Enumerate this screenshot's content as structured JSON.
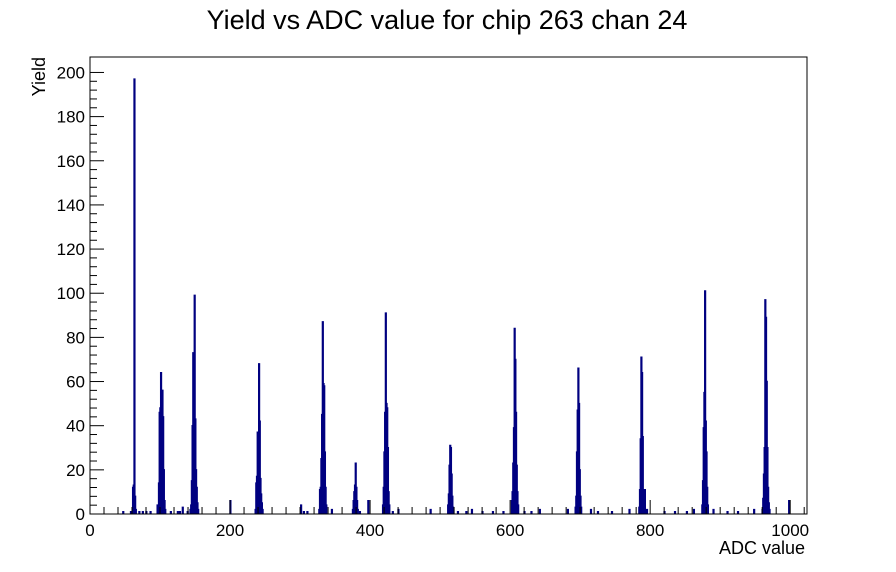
{
  "chart_data": {
    "type": "bar",
    "title": "Yield vs ADC value for chip 263 chan 24",
    "xlabel": "ADC value",
    "ylabel": "Yield",
    "xlim": [
      0,
      1024
    ],
    "ylim": [
      0,
      207
    ],
    "x_ticks": [
      0,
      200,
      400,
      600,
      800,
      1000
    ],
    "y_ticks": [
      0,
      20,
      40,
      60,
      80,
      100,
      120,
      140,
      160,
      180,
      200
    ],
    "color": "#000080",
    "grid": false,
    "legend": "none",
    "bins": [
      {
        "x": 47,
        "y": 1
      },
      {
        "x": 58,
        "y": 1
      },
      {
        "x": 61,
        "y": 12
      },
      {
        "x": 62,
        "y": 13
      },
      {
        "x": 63,
        "y": 197
      },
      {
        "x": 64,
        "y": 8
      },
      {
        "x": 65,
        "y": 2
      },
      {
        "x": 70,
        "y": 1
      },
      {
        "x": 75,
        "y": 1
      },
      {
        "x": 80,
        "y": 1
      },
      {
        "x": 86,
        "y": 1
      },
      {
        "x": 96,
        "y": 4
      },
      {
        "x": 98,
        "y": 14
      },
      {
        "x": 99,
        "y": 46
      },
      {
        "x": 100,
        "y": 48
      },
      {
        "x": 101,
        "y": 64
      },
      {
        "x": 102,
        "y": 38
      },
      {
        "x": 103,
        "y": 56
      },
      {
        "x": 104,
        "y": 44
      },
      {
        "x": 105,
        "y": 20
      },
      {
        "x": 106,
        "y": 6
      },
      {
        "x": 107,
        "y": 2
      },
      {
        "x": 115,
        "y": 1
      },
      {
        "x": 125,
        "y": 1
      },
      {
        "x": 128,
        "y": 1
      },
      {
        "x": 132,
        "y": 3
      },
      {
        "x": 139,
        "y": 1
      },
      {
        "x": 143,
        "y": 2
      },
      {
        "x": 144,
        "y": 4
      },
      {
        "x": 145,
        "y": 15
      },
      {
        "x": 146,
        "y": 40
      },
      {
        "x": 147,
        "y": 73
      },
      {
        "x": 148,
        "y": 38
      },
      {
        "x": 149,
        "y": 99
      },
      {
        "x": 150,
        "y": 43
      },
      {
        "x": 151,
        "y": 20
      },
      {
        "x": 152,
        "y": 12
      },
      {
        "x": 153,
        "y": 5
      },
      {
        "x": 154,
        "y": 2
      },
      {
        "x": 200,
        "y": 6
      },
      {
        "x": 236,
        "y": 2
      },
      {
        "x": 237,
        "y": 14
      },
      {
        "x": 238,
        "y": 17
      },
      {
        "x": 239,
        "y": 37
      },
      {
        "x": 240,
        "y": 19
      },
      {
        "x": 241,
        "y": 68
      },
      {
        "x": 242,
        "y": 42
      },
      {
        "x": 243,
        "y": 16
      },
      {
        "x": 244,
        "y": 9
      },
      {
        "x": 245,
        "y": 5
      },
      {
        "x": 246,
        "y": 2
      },
      {
        "x": 301,
        "y": 4
      },
      {
        "x": 305,
        "y": 1
      },
      {
        "x": 310,
        "y": 1
      },
      {
        "x": 327,
        "y": 2
      },
      {
        "x": 328,
        "y": 11
      },
      {
        "x": 329,
        "y": 12
      },
      {
        "x": 330,
        "y": 25
      },
      {
        "x": 331,
        "y": 45
      },
      {
        "x": 332,
        "y": 87
      },
      {
        "x": 333,
        "y": 59
      },
      {
        "x": 334,
        "y": 58
      },
      {
        "x": 335,
        "y": 28
      },
      {
        "x": 336,
        "y": 12
      },
      {
        "x": 337,
        "y": 4
      },
      {
        "x": 345,
        "y": 2
      },
      {
        "x": 375,
        "y": 2
      },
      {
        "x": 376,
        "y": 6
      },
      {
        "x": 377,
        "y": 10
      },
      {
        "x": 378,
        "y": 13
      },
      {
        "x": 379,
        "y": 23
      },
      {
        "x": 380,
        "y": 12
      },
      {
        "x": 381,
        "y": 6
      },
      {
        "x": 382,
        "y": 2
      },
      {
        "x": 385,
        "y": 1
      },
      {
        "x": 397,
        "y": 6
      },
      {
        "x": 418,
        "y": 4
      },
      {
        "x": 419,
        "y": 12
      },
      {
        "x": 420,
        "y": 28
      },
      {
        "x": 421,
        "y": 46
      },
      {
        "x": 422,
        "y": 91
      },
      {
        "x": 423,
        "y": 50
      },
      {
        "x": 424,
        "y": 48
      },
      {
        "x": 425,
        "y": 30
      },
      {
        "x": 426,
        "y": 10
      },
      {
        "x": 427,
        "y": 4
      },
      {
        "x": 432,
        "y": 1
      },
      {
        "x": 440,
        "y": 2
      },
      {
        "x": 486,
        "y": 2
      },
      {
        "x": 511,
        "y": 4
      },
      {
        "x": 512,
        "y": 9
      },
      {
        "x": 513,
        "y": 22
      },
      {
        "x": 514,
        "y": 31
      },
      {
        "x": 515,
        "y": 30
      },
      {
        "x": 516,
        "y": 18
      },
      {
        "x": 517,
        "y": 8
      },
      {
        "x": 518,
        "y": 3
      },
      {
        "x": 525,
        "y": 1
      },
      {
        "x": 537,
        "y": 1
      },
      {
        "x": 545,
        "y": 2
      },
      {
        "x": 560,
        "y": 1
      },
      {
        "x": 575,
        "y": 1
      },
      {
        "x": 590,
        "y": 1
      },
      {
        "x": 602,
        "y": 6
      },
      {
        "x": 603,
        "y": 10
      },
      {
        "x": 604,
        "y": 23
      },
      {
        "x": 605,
        "y": 39
      },
      {
        "x": 606,
        "y": 84
      },
      {
        "x": 607,
        "y": 70
      },
      {
        "x": 608,
        "y": 46
      },
      {
        "x": 609,
        "y": 22
      },
      {
        "x": 610,
        "y": 10
      },
      {
        "x": 611,
        "y": 4
      },
      {
        "x": 620,
        "y": 1
      },
      {
        "x": 630,
        "y": 1
      },
      {
        "x": 642,
        "y": 2
      },
      {
        "x": 682,
        "y": 2
      },
      {
        "x": 693,
        "y": 3
      },
      {
        "x": 694,
        "y": 8
      },
      {
        "x": 695,
        "y": 28
      },
      {
        "x": 696,
        "y": 47
      },
      {
        "x": 697,
        "y": 66
      },
      {
        "x": 698,
        "y": 50
      },
      {
        "x": 699,
        "y": 20
      },
      {
        "x": 700,
        "y": 8
      },
      {
        "x": 701,
        "y": 3
      },
      {
        "x": 715,
        "y": 2
      },
      {
        "x": 725,
        "y": 1
      },
      {
        "x": 745,
        "y": 1
      },
      {
        "x": 770,
        "y": 2
      },
      {
        "x": 784,
        "y": 3
      },
      {
        "x": 785,
        "y": 11
      },
      {
        "x": 786,
        "y": 34
      },
      {
        "x": 787,
        "y": 71
      },
      {
        "x": 788,
        "y": 64
      },
      {
        "x": 789,
        "y": 35
      },
      {
        "x": 790,
        "y": 11
      },
      {
        "x": 791,
        "y": 3
      },
      {
        "x": 792,
        "y": 11
      },
      {
        "x": 795,
        "y": 2
      },
      {
        "x": 820,
        "y": 1
      },
      {
        "x": 835,
        "y": 1
      },
      {
        "x": 852,
        "y": 1
      },
      {
        "x": 862,
        "y": 2
      },
      {
        "x": 874,
        "y": 4
      },
      {
        "x": 875,
        "y": 15
      },
      {
        "x": 876,
        "y": 39
      },
      {
        "x": 877,
        "y": 55
      },
      {
        "x": 878,
        "y": 101
      },
      {
        "x": 879,
        "y": 42
      },
      {
        "x": 880,
        "y": 28
      },
      {
        "x": 881,
        "y": 12
      },
      {
        "x": 882,
        "y": 4
      },
      {
        "x": 890,
        "y": 2
      },
      {
        "x": 910,
        "y": 1
      },
      {
        "x": 925,
        "y": 1
      },
      {
        "x": 948,
        "y": 2
      },
      {
        "x": 960,
        "y": 2
      },
      {
        "x": 961,
        "y": 7
      },
      {
        "x": 962,
        "y": 18
      },
      {
        "x": 963,
        "y": 30
      },
      {
        "x": 964,
        "y": 97
      },
      {
        "x": 965,
        "y": 89
      },
      {
        "x": 966,
        "y": 60
      },
      {
        "x": 967,
        "y": 30
      },
      {
        "x": 968,
        "y": 12
      },
      {
        "x": 969,
        "y": 5
      },
      {
        "x": 970,
        "y": 2
      },
      {
        "x": 998,
        "y": 6
      }
    ]
  }
}
